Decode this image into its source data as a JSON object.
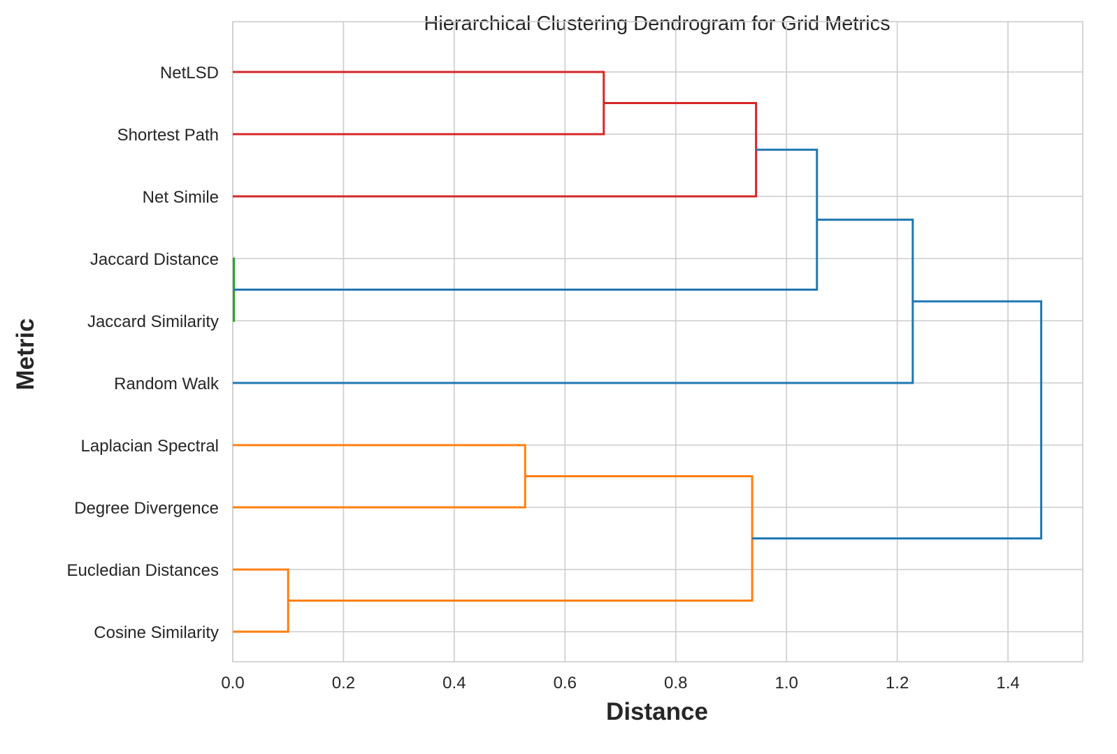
{
  "chart_data": {
    "type": "dendrogram",
    "orientation": "horizontal",
    "title": "Hierarchical Clustering Dendrogram for Grid Metrics",
    "xlabel": "Distance",
    "ylabel": "Metric",
    "xlim": [
      0,
      1.535
    ],
    "xticks": [
      "0.0",
      "0.2",
      "0.4",
      "0.6",
      "0.8",
      "1.0",
      "1.2",
      "1.4"
    ],
    "grid": true,
    "leaves": [
      "NetLSD",
      "Shortest Path",
      "Net Simile",
      "Jaccard Distance",
      "Jaccard Similarity",
      "Random Walk",
      "Laplacian Spectral",
      "Degree Divergence",
      "Eucledian Distances",
      "Cosine Similarity"
    ],
    "colors": {
      "red": "#d62728",
      "green": "#2ca02c",
      "blue": "#1f77b4",
      "orange": "#ff7f0e"
    },
    "merges": [
      {
        "left": "NetLSD",
        "right": "Shortest Path",
        "distance": 0.67,
        "color": "red"
      },
      {
        "left": "NetLSD+Shortest Path",
        "right": "Net Simile",
        "distance": 0.945,
        "color": "red"
      },
      {
        "left": "Jaccard Distance",
        "right": "Jaccard Similarity",
        "distance": 0.002,
        "color": "green"
      },
      {
        "left": "Red cluster",
        "right": "Jaccard pair",
        "distance": 1.055,
        "color": "blue"
      },
      {
        "left": "Cluster 4",
        "right": "Random Walk",
        "distance": 1.228,
        "color": "blue"
      },
      {
        "left": "Laplacian Spectral",
        "right": "Degree Divergence",
        "distance": 0.528,
        "color": "orange"
      },
      {
        "left": "Eucledian Distances",
        "right": "Cosine Similarity",
        "distance": 0.1,
        "color": "orange"
      },
      {
        "left": "Orange pair 1",
        "right": "Orange pair 2",
        "distance": 0.938,
        "color": "orange"
      },
      {
        "left": "Upper cluster",
        "right": "Orange cluster",
        "distance": 1.46,
        "color": "blue"
      }
    ]
  }
}
